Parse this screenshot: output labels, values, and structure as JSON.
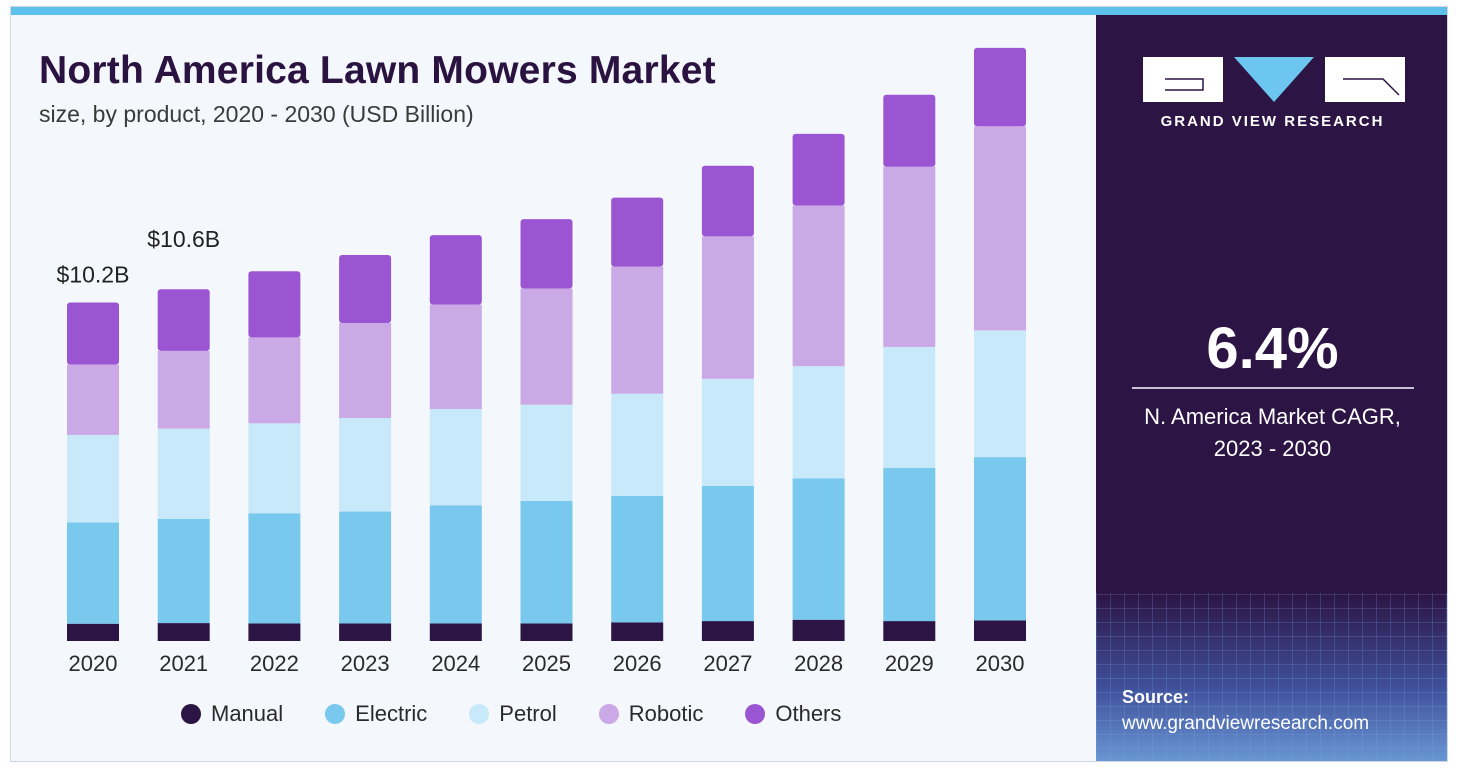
{
  "header": {
    "title": "North America Lawn Mowers Market",
    "subtitle": "size, by product, 2020 - 2030 (USD Billion)"
  },
  "side_panel": {
    "brand": "GRAND VIEW RESEARCH",
    "cagr_value": "6.4%",
    "cagr_label_line1": "N. America Market CAGR,",
    "cagr_label_line2": "2023 - 2030",
    "source_label": "Source:",
    "source_url": "www.grandviewresearch.com"
  },
  "colors": {
    "title": "#2a1340",
    "panel_background": "#2c1444",
    "top_bar": "#5cc2ec",
    "Manual": "#2c1444",
    "Electric": "#79c8ee",
    "Petrol": "#c8e9f9",
    "Robotic": "#cba8e6",
    "Others": "#9b55d2"
  },
  "chart_data": {
    "type": "bar",
    "stacked": true,
    "categories": [
      "2020",
      "2021",
      "2022",
      "2023",
      "2024",
      "2025",
      "2026",
      "2027",
      "2028",
      "2029",
      "2030"
    ],
    "series": [
      {
        "name": "Manual",
        "values": [
          0.52,
          0.54,
          0.53,
          0.53,
          0.53,
          0.53,
          0.56,
          0.6,
          0.64,
          0.6,
          0.62
        ]
      },
      {
        "name": "Electric",
        "values": [
          3.05,
          3.14,
          3.32,
          3.37,
          3.56,
          3.69,
          3.81,
          4.07,
          4.26,
          4.62,
          4.92
        ]
      },
      {
        "name": "Petrol",
        "values": [
          2.64,
          2.72,
          2.71,
          2.82,
          2.9,
          2.9,
          3.08,
          3.23,
          3.38,
          3.64,
          3.82
        ]
      },
      {
        "name": "Robotic",
        "values": [
          2.12,
          2.34,
          2.59,
          2.86,
          3.15,
          3.5,
          3.83,
          4.29,
          4.84,
          5.43,
          6.15
        ]
      },
      {
        "name": "Others",
        "values": [
          1.87,
          1.86,
          1.99,
          2.05,
          2.09,
          2.09,
          2.08,
          2.13,
          2.16,
          2.17,
          2.36
        ]
      }
    ],
    "data_labels": [
      {
        "category": "2020",
        "text": "$10.2B"
      },
      {
        "category": "2021",
        "text": "$10.6B"
      }
    ],
    "ylabel": "",
    "xlabel": "",
    "ylim": [
      0,
      18.5
    ],
    "legend_position": "bottom",
    "grid": false
  }
}
